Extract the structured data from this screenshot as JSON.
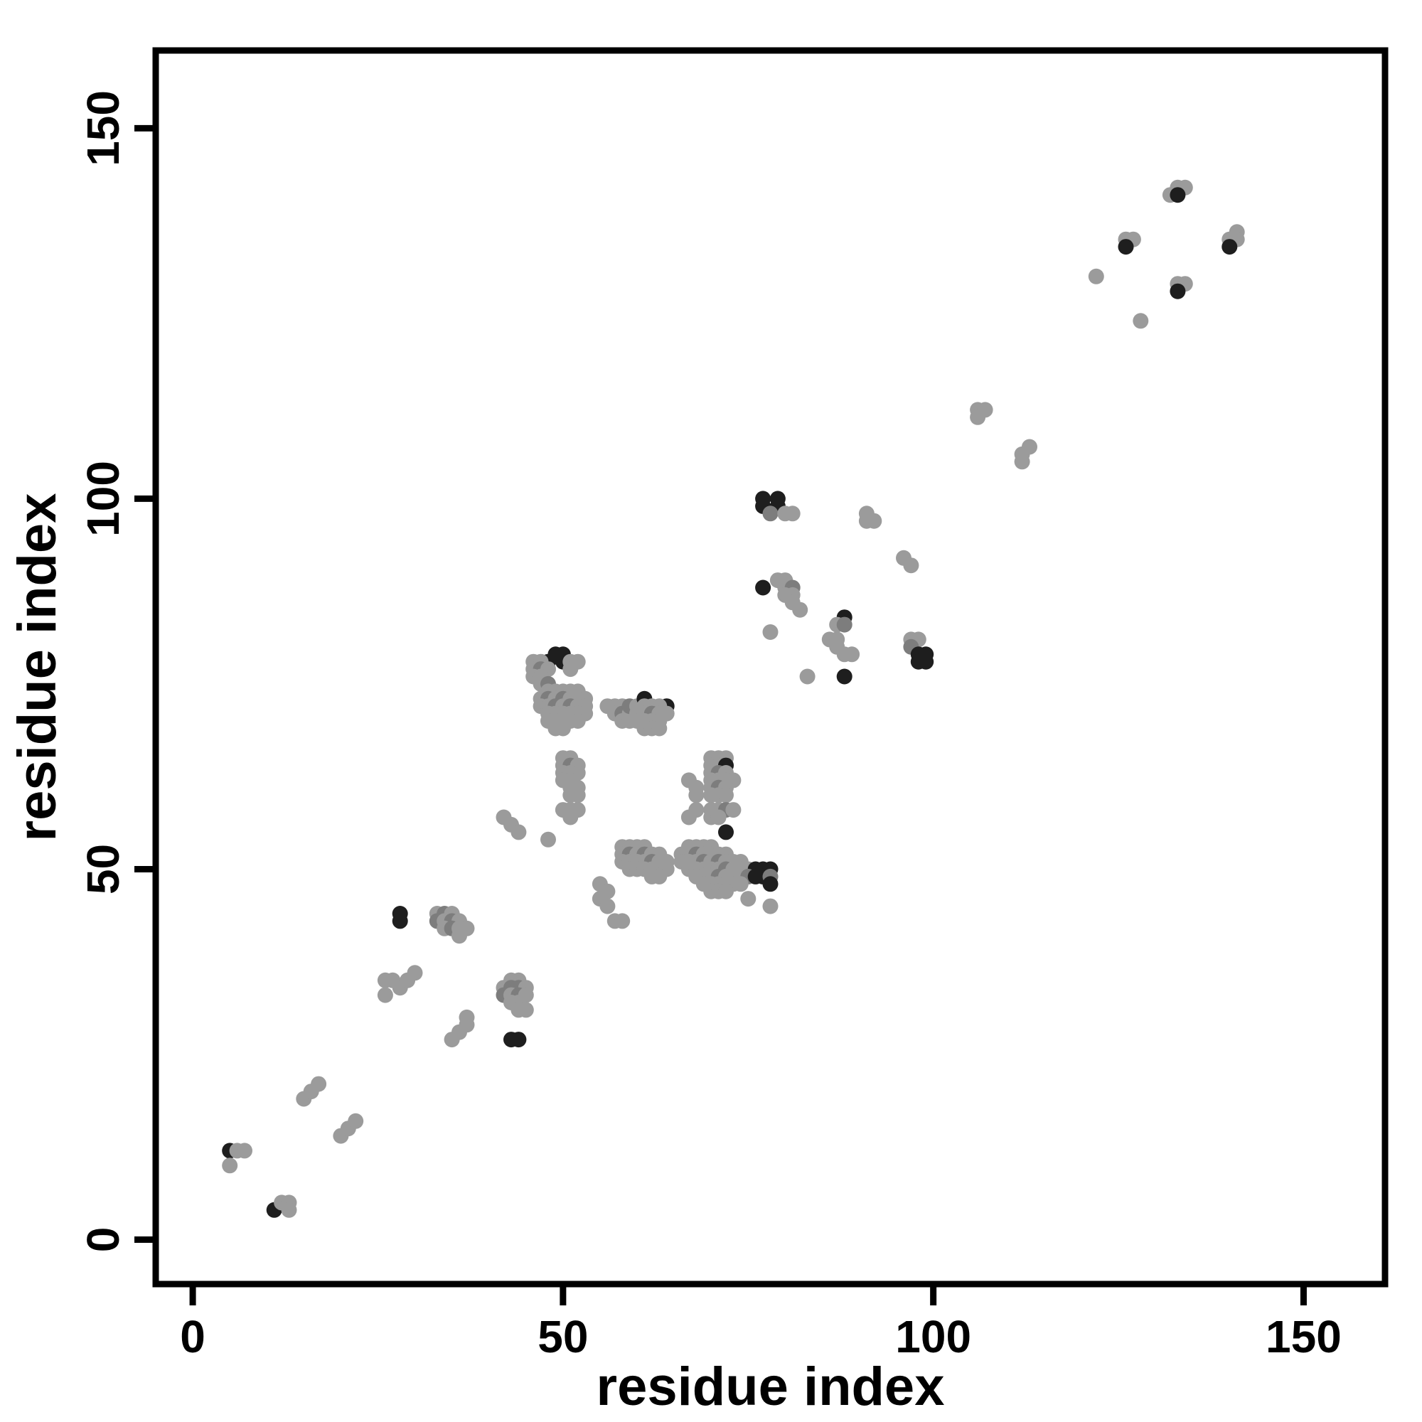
{
  "figure": {
    "background": "#ffffff",
    "axis_color": "#000000"
  },
  "chart_data": {
    "type": "scatter",
    "title": "",
    "xlabel": "residue index",
    "ylabel": "residue index",
    "xlim": [
      -5,
      161
    ],
    "ylim": [
      -6,
      160.5
    ],
    "xticks": [
      0,
      50,
      100,
      150
    ],
    "yticks": [
      0,
      50,
      100,
      150
    ],
    "grid": false,
    "legend": null,
    "point_radius_px": 11,
    "shade_colors": {
      "g": "#9b9b9b",
      "m": "#7d7d7d",
      "d": "#1e1e1e"
    },
    "points": [
      [
        5,
        12,
        "d"
      ],
      [
        6,
        12,
        "g"
      ],
      [
        7,
        12,
        "g"
      ],
      [
        5,
        10,
        "g"
      ],
      [
        11,
        4,
        "d"
      ],
      [
        12,
        5,
        "g"
      ],
      [
        13,
        5,
        "g"
      ],
      [
        13,
        4,
        "g"
      ],
      [
        15,
        19,
        "g"
      ],
      [
        16,
        20,
        "g"
      ],
      [
        17,
        21,
        "g"
      ],
      [
        20,
        14,
        "g"
      ],
      [
        21,
        15,
        "g"
      ],
      [
        22,
        16,
        "g"
      ],
      [
        26,
        35,
        "g"
      ],
      [
        27,
        35,
        "g"
      ],
      [
        28,
        34,
        "g"
      ],
      [
        29,
        35,
        "g"
      ],
      [
        30,
        36,
        "g"
      ],
      [
        26,
        33,
        "g"
      ],
      [
        28,
        44,
        "d"
      ],
      [
        28,
        43,
        "d"
      ],
      [
        33,
        44,
        "g"
      ],
      [
        34,
        44,
        "m"
      ],
      [
        35,
        44,
        "g"
      ],
      [
        33,
        43,
        "m"
      ],
      [
        34,
        43,
        "g"
      ],
      [
        35,
        43,
        "m"
      ],
      [
        36,
        43,
        "g"
      ],
      [
        34,
        42,
        "g"
      ],
      [
        35,
        42,
        "m"
      ],
      [
        36,
        42,
        "g"
      ],
      [
        37,
        42,
        "g"
      ],
      [
        36,
        41,
        "g"
      ],
      [
        35,
        27,
        "g"
      ],
      [
        36,
        28,
        "g"
      ],
      [
        37,
        29,
        "g"
      ],
      [
        37,
        30,
        "g"
      ],
      [
        43,
        35,
        "g"
      ],
      [
        44,
        35,
        "g"
      ],
      [
        42,
        34,
        "g"
      ],
      [
        43,
        34,
        "m"
      ],
      [
        44,
        34,
        "m"
      ],
      [
        45,
        34,
        "g"
      ],
      [
        42,
        33,
        "m"
      ],
      [
        43,
        33,
        "g"
      ],
      [
        44,
        33,
        "m"
      ],
      [
        45,
        33,
        "g"
      ],
      [
        43,
        32,
        "g"
      ],
      [
        44,
        32,
        "g"
      ],
      [
        44,
        31,
        "g"
      ],
      [
        45,
        31,
        "g"
      ],
      [
        43,
        27,
        "d"
      ],
      [
        44,
        27,
        "d"
      ],
      [
        42,
        57,
        "g"
      ],
      [
        43,
        56,
        "g"
      ],
      [
        44,
        55,
        "g"
      ],
      [
        48,
        54,
        "g"
      ],
      [
        48,
        78,
        "d"
      ],
      [
        49,
        79,
        "d"
      ],
      [
        50,
        79,
        "d"
      ],
      [
        50,
        78,
        "d"
      ],
      [
        46,
        78,
        "g"
      ],
      [
        47,
        78,
        "g"
      ],
      [
        51,
        78,
        "g"
      ],
      [
        52,
        78,
        "g"
      ],
      [
        46,
        77,
        "g"
      ],
      [
        47,
        77,
        "m"
      ],
      [
        48,
        77,
        "g"
      ],
      [
        51,
        77,
        "g"
      ],
      [
        46,
        76,
        "g"
      ],
      [
        47,
        76,
        "g"
      ],
      [
        47,
        75,
        "g"
      ],
      [
        48,
        75,
        "m"
      ],
      [
        48,
        74,
        "g"
      ],
      [
        49,
        74,
        "g"
      ],
      [
        50,
        74,
        "g"
      ],
      [
        51,
        74,
        "g"
      ],
      [
        52,
        74,
        "g"
      ],
      [
        47,
        73,
        "g"
      ],
      [
        48,
        73,
        "m"
      ],
      [
        49,
        73,
        "g"
      ],
      [
        50,
        73,
        "m"
      ],
      [
        51,
        73,
        "g"
      ],
      [
        52,
        73,
        "g"
      ],
      [
        53,
        73,
        "g"
      ],
      [
        47,
        72,
        "g"
      ],
      [
        48,
        72,
        "g"
      ],
      [
        49,
        72,
        "m"
      ],
      [
        50,
        72,
        "g"
      ],
      [
        51,
        72,
        "m"
      ],
      [
        52,
        72,
        "g"
      ],
      [
        53,
        72,
        "g"
      ],
      [
        48,
        71,
        "g"
      ],
      [
        49,
        71,
        "g"
      ],
      [
        50,
        71,
        "g"
      ],
      [
        51,
        71,
        "g"
      ],
      [
        52,
        71,
        "g"
      ],
      [
        53,
        71,
        "g"
      ],
      [
        48,
        70,
        "g"
      ],
      [
        49,
        70,
        "g"
      ],
      [
        50,
        70,
        "g"
      ],
      [
        51,
        70,
        "g"
      ],
      [
        52,
        70,
        "g"
      ],
      [
        49,
        69,
        "g"
      ],
      [
        50,
        69,
        "g"
      ],
      [
        50,
        65,
        "g"
      ],
      [
        51,
        65,
        "g"
      ],
      [
        50,
        64,
        "g"
      ],
      [
        51,
        64,
        "m"
      ],
      [
        52,
        64,
        "g"
      ],
      [
        50,
        63,
        "g"
      ],
      [
        51,
        63,
        "g"
      ],
      [
        52,
        63,
        "g"
      ],
      [
        50,
        62,
        "g"
      ],
      [
        51,
        62,
        "g"
      ],
      [
        51,
        61,
        "g"
      ],
      [
        52,
        61,
        "g"
      ],
      [
        51,
        60,
        "g"
      ],
      [
        52,
        60,
        "g"
      ],
      [
        50,
        58,
        "g"
      ],
      [
        51,
        58,
        "g"
      ],
      [
        52,
        58,
        "g"
      ],
      [
        51,
        57,
        "g"
      ],
      [
        56,
        72,
        "g"
      ],
      [
        57,
        72,
        "g"
      ],
      [
        58,
        72,
        "g"
      ],
      [
        57,
        71,
        "g"
      ],
      [
        58,
        71,
        "m"
      ],
      [
        59,
        71,
        "g"
      ],
      [
        58,
        70,
        "g"
      ],
      [
        59,
        70,
        "g"
      ],
      [
        59,
        72,
        "m"
      ],
      [
        60,
        72,
        "g"
      ],
      [
        60,
        71,
        "g"
      ],
      [
        60,
        70,
        "g"
      ],
      [
        61,
        73,
        "d"
      ],
      [
        64,
        72,
        "d"
      ],
      [
        61,
        72,
        "g"
      ],
      [
        62,
        72,
        "g"
      ],
      [
        63,
        72,
        "g"
      ],
      [
        61,
        71,
        "g"
      ],
      [
        62,
        71,
        "m"
      ],
      [
        63,
        71,
        "g"
      ],
      [
        64,
        71,
        "g"
      ],
      [
        61,
        70,
        "g"
      ],
      [
        62,
        70,
        "g"
      ],
      [
        63,
        70,
        "g"
      ],
      [
        61,
        69,
        "g"
      ],
      [
        62,
        69,
        "g"
      ],
      [
        63,
        69,
        "g"
      ],
      [
        55,
        48,
        "g"
      ],
      [
        56,
        47,
        "g"
      ],
      [
        55,
        46,
        "g"
      ],
      [
        56,
        45,
        "g"
      ],
      [
        57,
        43,
        "g"
      ],
      [
        58,
        43,
        "g"
      ],
      [
        58,
        53,
        "g"
      ],
      [
        59,
        53,
        "g"
      ],
      [
        60,
        53,
        "g"
      ],
      [
        61,
        53,
        "g"
      ],
      [
        58,
        52,
        "g"
      ],
      [
        59,
        52,
        "m"
      ],
      [
        60,
        52,
        "g"
      ],
      [
        61,
        52,
        "m"
      ],
      [
        62,
        52,
        "g"
      ],
      [
        63,
        52,
        "g"
      ],
      [
        58,
        51,
        "g"
      ],
      [
        59,
        51,
        "g"
      ],
      [
        60,
        51,
        "g"
      ],
      [
        61,
        51,
        "g"
      ],
      [
        62,
        51,
        "m"
      ],
      [
        63,
        51,
        "g"
      ],
      [
        64,
        51,
        "g"
      ],
      [
        59,
        50,
        "g"
      ],
      [
        60,
        50,
        "g"
      ],
      [
        61,
        50,
        "g"
      ],
      [
        62,
        50,
        "g"
      ],
      [
        63,
        50,
        "g"
      ],
      [
        64,
        50,
        "g"
      ],
      [
        62,
        49,
        "g"
      ],
      [
        63,
        49,
        "g"
      ],
      [
        67,
        62,
        "g"
      ],
      [
        68,
        61,
        "g"
      ],
      [
        68,
        60,
        "g"
      ],
      [
        68,
        58,
        "g"
      ],
      [
        67,
        57,
        "g"
      ],
      [
        70,
        65,
        "g"
      ],
      [
        71,
        65,
        "g"
      ],
      [
        72,
        65,
        "g"
      ],
      [
        70,
        64,
        "g"
      ],
      [
        71,
        64,
        "g"
      ],
      [
        72,
        64,
        "d"
      ],
      [
        70,
        63,
        "g"
      ],
      [
        71,
        63,
        "m"
      ],
      [
        72,
        63,
        "g"
      ],
      [
        70,
        62,
        "g"
      ],
      [
        71,
        62,
        "g"
      ],
      [
        72,
        62,
        "g"
      ],
      [
        73,
        62,
        "g"
      ],
      [
        70,
        61,
        "g"
      ],
      [
        71,
        61,
        "m"
      ],
      [
        72,
        61,
        "g"
      ],
      [
        70,
        60,
        "g"
      ],
      [
        71,
        60,
        "g"
      ],
      [
        72,
        60,
        "g"
      ],
      [
        70,
        58,
        "g"
      ],
      [
        71,
        58,
        "g"
      ],
      [
        72,
        58,
        "m"
      ],
      [
        73,
        58,
        "g"
      ],
      [
        70,
        57,
        "g"
      ],
      [
        71,
        57,
        "g"
      ],
      [
        72,
        55,
        "d"
      ],
      [
        67,
        53,
        "g"
      ],
      [
        68,
        53,
        "g"
      ],
      [
        69,
        53,
        "g"
      ],
      [
        70,
        53,
        "g"
      ],
      [
        66,
        52,
        "g"
      ],
      [
        67,
        52,
        "g"
      ],
      [
        68,
        52,
        "m"
      ],
      [
        69,
        52,
        "g"
      ],
      [
        70,
        52,
        "g"
      ],
      [
        71,
        52,
        "g"
      ],
      [
        72,
        52,
        "g"
      ],
      [
        66,
        51,
        "g"
      ],
      [
        67,
        51,
        "g"
      ],
      [
        68,
        51,
        "g"
      ],
      [
        69,
        51,
        "m"
      ],
      [
        70,
        51,
        "g"
      ],
      [
        71,
        51,
        "m"
      ],
      [
        72,
        51,
        "g"
      ],
      [
        73,
        51,
        "g"
      ],
      [
        74,
        51,
        "g"
      ],
      [
        67,
        50,
        "g"
      ],
      [
        68,
        50,
        "g"
      ],
      [
        69,
        50,
        "g"
      ],
      [
        70,
        50,
        "g"
      ],
      [
        71,
        50,
        "g"
      ],
      [
        72,
        50,
        "m"
      ],
      [
        73,
        50,
        "g"
      ],
      [
        74,
        50,
        "g"
      ],
      [
        75,
        50,
        "g"
      ],
      [
        76,
        50,
        "d"
      ],
      [
        77,
        50,
        "d"
      ],
      [
        78,
        50,
        "d"
      ],
      [
        68,
        49,
        "g"
      ],
      [
        69,
        49,
        "g"
      ],
      [
        70,
        49,
        "g"
      ],
      [
        71,
        49,
        "m"
      ],
      [
        72,
        49,
        "g"
      ],
      [
        73,
        49,
        "g"
      ],
      [
        74,
        49,
        "g"
      ],
      [
        75,
        49,
        "m"
      ],
      [
        76,
        49,
        "d"
      ],
      [
        77,
        49,
        "d"
      ],
      [
        78,
        49,
        "m"
      ],
      [
        69,
        48,
        "g"
      ],
      [
        70,
        48,
        "g"
      ],
      [
        71,
        48,
        "g"
      ],
      [
        72,
        48,
        "g"
      ],
      [
        73,
        48,
        "g"
      ],
      [
        74,
        48,
        "g"
      ],
      [
        78,
        48,
        "d"
      ],
      [
        70,
        47,
        "g"
      ],
      [
        71,
        47,
        "g"
      ],
      [
        72,
        47,
        "g"
      ],
      [
        75,
        46,
        "g"
      ],
      [
        78,
        45,
        "g"
      ],
      [
        77,
        100,
        "d"
      ],
      [
        79,
        100,
        "d"
      ],
      [
        77,
        99,
        "d"
      ],
      [
        79,
        99,
        "d"
      ],
      [
        78,
        98,
        "m"
      ],
      [
        80,
        98,
        "g"
      ],
      [
        81,
        98,
        "g"
      ],
      [
        91,
        98,
        "g"
      ],
      [
        91,
        97,
        "g"
      ],
      [
        92,
        97,
        "g"
      ],
      [
        77,
        88,
        "d"
      ],
      [
        79,
        89,
        "g"
      ],
      [
        80,
        89,
        "g"
      ],
      [
        80,
        88,
        "g"
      ],
      [
        81,
        88,
        "m"
      ],
      [
        80,
        87,
        "g"
      ],
      [
        81,
        87,
        "g"
      ],
      [
        81,
        86,
        "g"
      ],
      [
        82,
        85,
        "g"
      ],
      [
        78,
        82,
        "g"
      ],
      [
        88,
        84,
        "d"
      ],
      [
        87,
        83,
        "g"
      ],
      [
        88,
        83,
        "m"
      ],
      [
        86,
        81,
        "g"
      ],
      [
        87,
        81,
        "g"
      ],
      [
        87,
        80,
        "g"
      ],
      [
        88,
        79,
        "g"
      ],
      [
        89,
        79,
        "g"
      ],
      [
        88,
        76,
        "d"
      ],
      [
        83,
        76,
        "g"
      ],
      [
        97,
        81,
        "g"
      ],
      [
        98,
        81,
        "g"
      ],
      [
        97,
        80,
        "m"
      ],
      [
        98,
        79,
        "d"
      ],
      [
        99,
        79,
        "d"
      ],
      [
        98,
        78,
        "d"
      ],
      [
        99,
        78,
        "d"
      ],
      [
        96,
        92,
        "g"
      ],
      [
        97,
        91,
        "g"
      ],
      [
        106,
        112,
        "g"
      ],
      [
        107,
        112,
        "g"
      ],
      [
        106,
        111,
        "g"
      ],
      [
        112,
        106,
        "g"
      ],
      [
        113,
        107,
        "g"
      ],
      [
        112,
        105,
        "g"
      ],
      [
        122,
        130,
        "g"
      ],
      [
        126,
        135,
        "g"
      ],
      [
        127,
        135,
        "g"
      ],
      [
        126,
        134,
        "d"
      ],
      [
        128,
        124,
        "g"
      ],
      [
        133,
        142,
        "g"
      ],
      [
        134,
        142,
        "g"
      ],
      [
        132,
        141,
        "g"
      ],
      [
        133,
        141,
        "d"
      ],
      [
        133,
        129,
        "g"
      ],
      [
        134,
        129,
        "g"
      ],
      [
        133,
        128,
        "d"
      ],
      [
        140,
        135,
        "g"
      ],
      [
        141,
        136,
        "g"
      ],
      [
        141,
        135,
        "g"
      ],
      [
        140,
        134,
        "d"
      ]
    ]
  },
  "style": {
    "box_stroke_width": 9,
    "tick_length": 30,
    "tick_stroke_width": 9,
    "tick_font_size": 64,
    "axis_label_font_size": 76
  }
}
